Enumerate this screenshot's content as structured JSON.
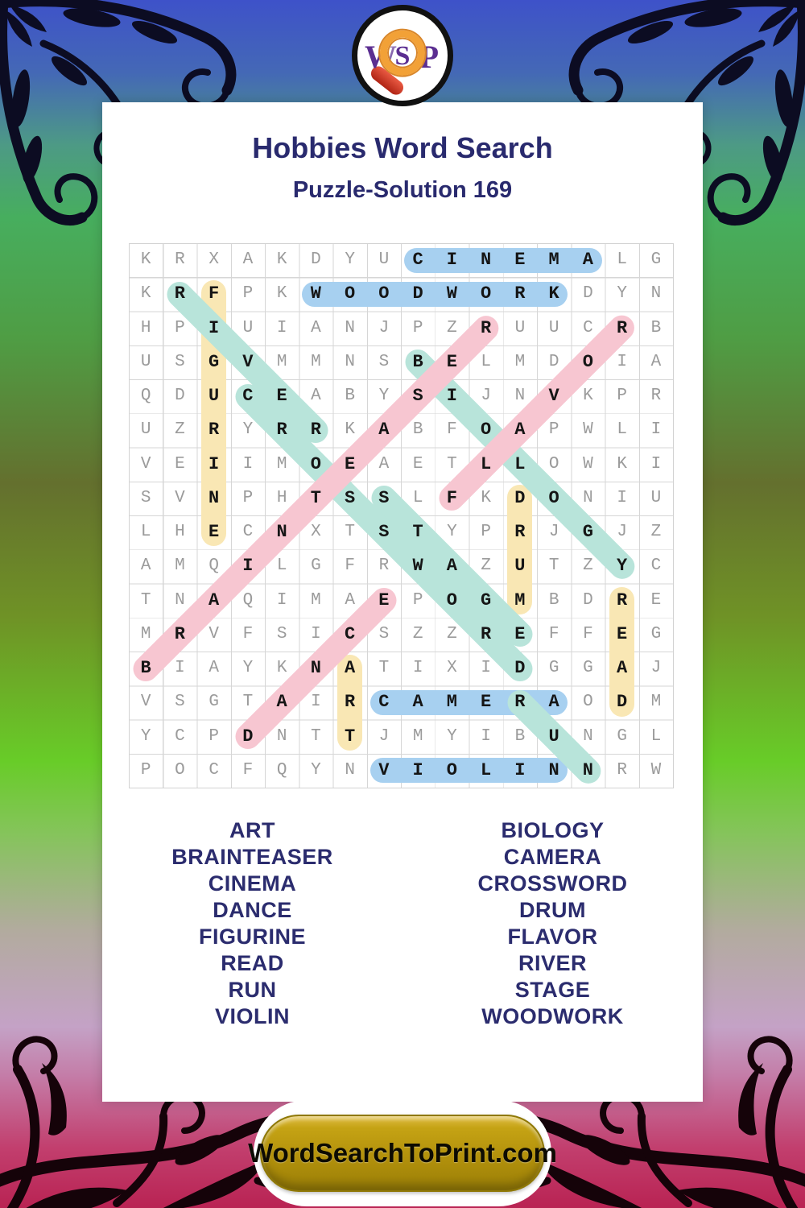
{
  "logo": {
    "w": "W",
    "s": "S",
    "p": "P"
  },
  "header": {
    "title": "Hobbies Word Search",
    "subtitle": "Puzzle-Solution 169"
  },
  "grid": {
    "rows": [
      "KRXAKDYUCINEMALG",
      "KRFPKWOODWORKDYN",
      "HPIUIANJPZRUUCRB",
      "USGVMMNSBELMDOIA",
      "QDUCEABYSIJNVKPR",
      "UZRYRRKABFOAPWLI",
      "VEIIMOEAETLLOWKI",
      "SVNPHTSSLFKDONIU",
      "LHECNXTSTYPRJGJZ",
      "AMQILGFRWAZUTZYC",
      "TNAQIMAEPOGMBDRE",
      "MRVFSICSZZREFFEG",
      "BIAYKNATIXIDGGAJ",
      "VSGTAIRCAMERAODM",
      "YCPDNTTJMYIBUNGL",
      "POCFQYNVIOLINNRW"
    ]
  },
  "solutions": [
    {
      "word": "CINEMA",
      "row": 0,
      "col": 8,
      "dir": "h",
      "len": 6,
      "color": "blue"
    },
    {
      "word": "WOODWORK",
      "row": 1,
      "col": 5,
      "dir": "h",
      "len": 8,
      "color": "blue"
    },
    {
      "word": "CAMERA",
      "row": 13,
      "col": 7,
      "dir": "h",
      "len": 6,
      "color": "blue"
    },
    {
      "word": "VIOLIN",
      "row": 15,
      "col": 7,
      "dir": "h",
      "len": 6,
      "color": "blue"
    },
    {
      "word": "FIGURINE",
      "row": 1,
      "col": 2,
      "dir": "v",
      "len": 8,
      "color": "yellow"
    },
    {
      "word": "DRUM",
      "row": 7,
      "col": 11,
      "dir": "v",
      "len": 4,
      "color": "yellow"
    },
    {
      "word": "READ",
      "row": 10,
      "col": 14,
      "dir": "v",
      "len": 4,
      "color": "yellow"
    },
    {
      "word": "ART",
      "row": 12,
      "col": 6,
      "dir": "v",
      "len": 3,
      "color": "yellow"
    },
    {
      "word": "RIVER",
      "row": 1,
      "col": 1,
      "dir": "d",
      "len": 5,
      "color": "teal"
    },
    {
      "word": "CROSSWORD",
      "row": 4,
      "col": 3,
      "dir": "d",
      "len": 9,
      "color": "teal"
    },
    {
      "word": "STAGE",
      "row": 7,
      "col": 7,
      "dir": "d",
      "len": 5,
      "color": "teal"
    },
    {
      "word": "BIOLOGY",
      "row": 3,
      "col": 8,
      "dir": "d",
      "len": 7,
      "color": "teal"
    },
    {
      "word": "RUN",
      "row": 13,
      "col": 11,
      "dir": "d",
      "len": 3,
      "color": "teal"
    },
    {
      "word": "BRAINTEASER",
      "row": 12,
      "col": 0,
      "dir": "u",
      "len": 11,
      "color": "pink"
    },
    {
      "word": "DANCE",
      "row": 14,
      "col": 3,
      "dir": "u",
      "len": 5,
      "color": "pink"
    },
    {
      "word": "FLAVOR",
      "row": 7,
      "col": 9,
      "dir": "u",
      "len": 6,
      "color": "pink"
    }
  ],
  "word_list": {
    "left": [
      "ART",
      "BRAINTEASER",
      "CINEMA",
      "DANCE",
      "FIGURINE",
      "READ",
      "RUN",
      "VIOLIN"
    ],
    "right": [
      "BIOLOGY",
      "CAMERA",
      "CROSSWORD",
      "DRUM",
      "FLAVOR",
      "RIVER",
      "STAGE",
      "WOODWORK"
    ]
  },
  "footer": {
    "site_label": "WordSearchToPrint.com"
  },
  "colors": {
    "accent_navy": "#2b2c6e",
    "highlight_blue": "#a7d0f0",
    "highlight_teal": "#b8e4da",
    "highlight_yellow": "#f9e7b4",
    "highlight_pink": "#f7c6d1",
    "logo_purple": "#5b2e91",
    "logo_orange": "#f2a137",
    "logo_handle_red": "#c9301f",
    "button_gold": "#b3910c",
    "letter_gray": "#9b9b9b",
    "letter_solution": "#151515"
  }
}
